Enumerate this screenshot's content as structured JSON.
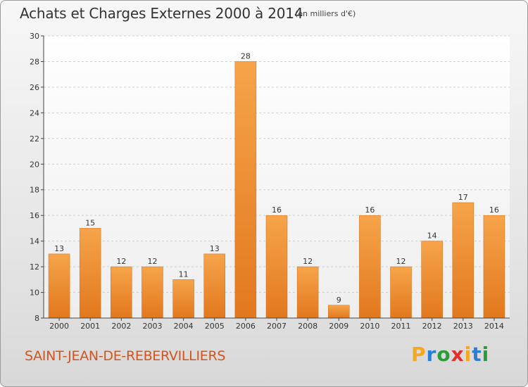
{
  "header": {
    "title": "Achats et Charges Externes 2000 à 2014",
    "unit": "(en milliers d'€)"
  },
  "footer": {
    "commune": "SAINT-JEAN-DE-REBERVILLIERS",
    "logo": "Proxiti",
    "logo_letters": [
      "P",
      "r",
      "o",
      "x",
      "i",
      "t",
      "i"
    ],
    "logo_colors": [
      "#f5a623",
      "#2a7fd4",
      "#2a9d3a",
      "#e0312d",
      "#f5a623",
      "#2a7fd4",
      "#2a9d3a"
    ]
  },
  "chart_data": {
    "type": "bar",
    "title": "Achats et Charges Externes 2000 à 2014",
    "subtitle": "(en milliers d'€)",
    "categories": [
      "2000",
      "2001",
      "2002",
      "2003",
      "2004",
      "2005",
      "2006",
      "2007",
      "2008",
      "2009",
      "2010",
      "2011",
      "2012",
      "2013",
      "2014"
    ],
    "values": [
      13,
      15,
      12,
      12,
      11,
      13,
      28,
      16,
      12,
      9,
      16,
      12,
      14,
      17,
      16
    ],
    "ylim": [
      8,
      30
    ],
    "yticks": [
      8,
      10,
      12,
      14,
      16,
      18,
      20,
      22,
      24,
      26,
      28,
      30
    ],
    "xlabel": "",
    "ylabel": "",
    "grid": "horizontal dashed",
    "bar_color": "#f29e3f",
    "bar_color_dark": "#e07d22"
  }
}
